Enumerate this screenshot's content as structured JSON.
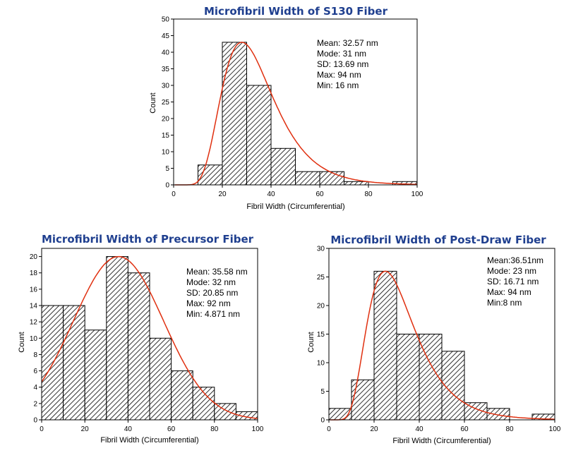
{
  "chart_data": [
    {
      "type": "bar",
      "title": "Microfibril Width of S130 Fiber",
      "xlabel": "Fibril Width (Circumferential)",
      "ylabel": "Count",
      "xlim": [
        0,
        100
      ],
      "ylim": [
        0,
        50
      ],
      "x_ticks": [
        0,
        20,
        40,
        60,
        80,
        100
      ],
      "y_ticks": [
        0,
        5,
        10,
        15,
        20,
        25,
        30,
        35,
        40,
        45,
        50
      ],
      "bins": [
        [
          10,
          20
        ],
        [
          20,
          30
        ],
        [
          30,
          40
        ],
        [
          40,
          50
        ],
        [
          50,
          60
        ],
        [
          60,
          70
        ],
        [
          70,
          80
        ],
        [
          80,
          90
        ],
        [
          90,
          100
        ]
      ],
      "values": [
        6,
        43,
        30,
        11,
        4,
        4,
        1,
        0,
        1
      ],
      "fit_curve": {
        "type": "lognormal",
        "color": "#e03010",
        "peak_x": 28,
        "peak_y": 43
      },
      "stats": [
        "Mean: 32.57 nm",
        "Mode: 31 nm",
        "SD: 13.69 nm",
        "Max: 94 nm",
        "Min: 16 nm"
      ]
    },
    {
      "type": "bar",
      "title": "Microfibril Width of Precursor Fiber",
      "xlabel": "Fibril Width (Circumferential)",
      "ylabel": "Count",
      "xlim": [
        0,
        100
      ],
      "ylim": [
        0,
        21
      ],
      "x_ticks": [
        0,
        20,
        40,
        60,
        80,
        100
      ],
      "y_ticks": [
        0,
        2,
        4,
        6,
        8,
        10,
        12,
        14,
        16,
        18,
        20
      ],
      "bins": [
        [
          0,
          10
        ],
        [
          10,
          20
        ],
        [
          20,
          30
        ],
        [
          30,
          40
        ],
        [
          40,
          50
        ],
        [
          50,
          60
        ],
        [
          60,
          70
        ],
        [
          70,
          80
        ],
        [
          80,
          90
        ],
        [
          90,
          100
        ]
      ],
      "values": [
        14,
        14,
        11,
        20,
        18,
        10,
        6,
        4,
        2,
        1
      ],
      "fit_curve": {
        "type": "normal",
        "color": "#e03010",
        "mean": 35.58,
        "sd": 20.85,
        "peak_y": 20
      },
      "stats": [
        "Mean: 35.58 nm",
        "Mode: 32 nm",
        "SD: 20.85 nm",
        "Max: 92 nm",
        "Min: 4.871 nm"
      ]
    },
    {
      "type": "bar",
      "title": "Microfibril Width of Post-Draw Fiber",
      "xlabel": "Fibril Width (Circumferential)",
      "ylabel": "Count",
      "xlim": [
        0,
        100
      ],
      "ylim": [
        0,
        30
      ],
      "x_ticks": [
        0,
        20,
        40,
        60,
        80,
        100
      ],
      "y_ticks": [
        0,
        5,
        10,
        15,
        20,
        25,
        30
      ],
      "bins": [
        [
          0,
          10
        ],
        [
          10,
          20
        ],
        [
          20,
          30
        ],
        [
          30,
          40
        ],
        [
          40,
          50
        ],
        [
          50,
          60
        ],
        [
          60,
          70
        ],
        [
          70,
          80
        ],
        [
          80,
          90
        ],
        [
          90,
          100
        ]
      ],
      "values": [
        2,
        7,
        26,
        15,
        15,
        12,
        3,
        2,
        0,
        1
      ],
      "fit_curve": {
        "type": "lognormal",
        "color": "#e03010",
        "peak_x": 25,
        "peak_y": 26
      },
      "stats": [
        "Mean:36.51nm",
        "Mode: 23 nm",
        "SD: 16.71 nm",
        "Max: 94 nm",
        "Min:8 nm"
      ]
    }
  ]
}
